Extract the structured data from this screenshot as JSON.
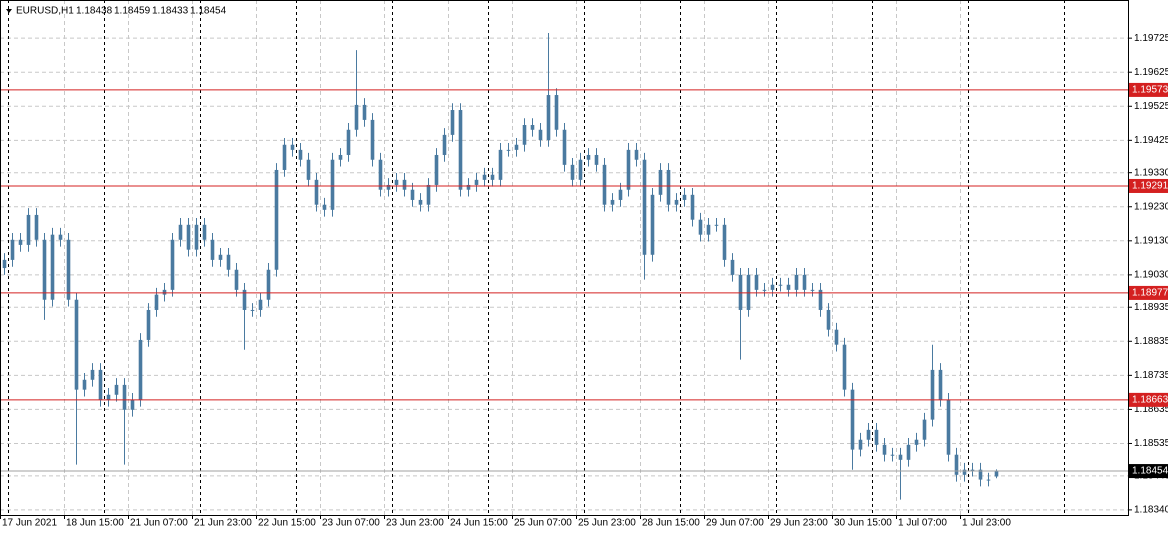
{
  "chart_data": {
    "type": "candlestick",
    "title": "EURUSD,H1",
    "color": "#4a7aa0",
    "level_color": "#d42020",
    "grid": true,
    "xlim": [
      0,
      141
    ],
    "ylim": [
      1.18325,
      1.19837
    ],
    "yticks": [
      1.19725,
      1.19625,
      1.19525,
      1.19425,
      {
        "value": 1.1933,
        "label": "1.19330"
      },
      {
        "value": 1.1923,
        "label": "1.19230"
      },
      {
        "value": 1.1913,
        "label": "1.19130"
      },
      {
        "value": 1.1903,
        "label": "1.19030"
      },
      1.18935,
      1.18835,
      1.18735,
      1.18635,
      1.18535,
      {
        "value": 1.1844,
        "label": "1.18440"
      },
      {
        "value": 1.1834,
        "label": "1.18340"
      }
    ],
    "xticks": [
      {
        "value": 0,
        "label": "17 Jun 2021"
      },
      {
        "value": 8,
        "label": "18 Jun 15:00"
      },
      {
        "value": 16,
        "label": "21 Jun 07:00"
      },
      {
        "value": 24,
        "label": "21 Jun 23:00"
      },
      {
        "value": 32,
        "label": "22 Jun 15:00"
      },
      {
        "value": 40,
        "label": "23 Jun 07:00"
      },
      {
        "value": 48,
        "label": "23 Jun 23:00"
      },
      {
        "value": 56,
        "label": "24 Jun 15:00"
      },
      {
        "value": 64,
        "label": "25 Jun 07:00"
      },
      {
        "value": 72,
        "label": "25 Jun 23:00"
      },
      {
        "value": 80,
        "label": "28 Jun 15:00"
      },
      {
        "value": 88,
        "label": "29 Jun 07:00"
      },
      {
        "value": 96,
        "label": "29 Jun 23:00"
      },
      {
        "value": 104,
        "label": "30 Jun 15:00"
      },
      {
        "value": 112,
        "label": "1 Jul 07:00"
      },
      {
        "value": 120,
        "label": "1 Jul 23:00"
      }
    ],
    "separators": [
      1,
      13,
      25,
      37,
      49,
      61,
      73,
      85,
      97,
      109,
      121,
      133
    ],
    "levels": [
      1.19573,
      1.19291,
      1.18977,
      1.18663
    ],
    "ohlc": [
      [
        1.1905,
        1.19094,
        1.1903,
        1.19074
      ],
      [
        1.19074,
        1.19153,
        1.19054,
        1.19133
      ],
      [
        1.19133,
        1.19153,
        1.19098,
        1.19118
      ],
      [
        1.19118,
        1.19226,
        1.19098,
        1.19206
      ],
      [
        1.19206,
        1.19226,
        1.19113,
        1.19133
      ],
      [
        1.19133,
        1.19153,
        1.18898,
        1.18957
      ],
      [
        1.18957,
        1.19168,
        1.18937,
        1.19148
      ],
      [
        1.19148,
        1.19168,
        1.19113,
        1.19133
      ],
      [
        1.19133,
        1.19153,
        1.18937,
        1.18957
      ],
      [
        1.18957,
        1.18977,
        1.18473,
        1.18693
      ],
      [
        1.18693,
        1.18742,
        1.18673,
        1.18722
      ],
      [
        1.18722,
        1.18771,
        1.18702,
        1.18751
      ],
      [
        1.18751,
        1.18771,
        1.18643,
        1.18663
      ],
      [
        1.18663,
        1.18698,
        1.18643,
        1.18678
      ],
      [
        1.18678,
        1.18727,
        1.18658,
        1.18707
      ],
      [
        1.18707,
        1.18727,
        1.18473,
        1.18634
      ],
      [
        1.18634,
        1.18683,
        1.18614,
        1.18663
      ],
      [
        1.18663,
        1.18859,
        1.18643,
        1.18839
      ],
      [
        1.18839,
        1.18947,
        1.18819,
        1.18927
      ],
      [
        1.18927,
        1.18992,
        1.18907,
        1.18972
      ],
      [
        1.18972,
        1.19006,
        1.18952,
        1.18986
      ],
      [
        1.18986,
        1.19153,
        1.18966,
        1.19133
      ],
      [
        1.19133,
        1.19197,
        1.19113,
        1.19177
      ],
      [
        1.19177,
        1.19197,
        1.19084,
        1.19104
      ],
      [
        1.19104,
        1.19197,
        1.19084,
        1.19177
      ],
      [
        1.19177,
        1.19197,
        1.19113,
        1.19133
      ],
      [
        1.19133,
        1.19153,
        1.19054,
        1.19074
      ],
      [
        1.19074,
        1.19109,
        1.19054,
        1.19089
      ],
      [
        1.19089,
        1.19109,
        1.19025,
        1.19045
      ],
      [
        1.19045,
        1.19065,
        1.18966,
        1.18986
      ],
      [
        1.18986,
        1.19006,
        1.1881,
        1.18927
      ],
      [
        1.18927,
        1.18947,
        1.18907,
        1.18927
      ],
      [
        1.18927,
        1.18977,
        1.18907,
        1.18957
      ],
      [
        1.18957,
        1.19065,
        1.18937,
        1.19045
      ],
      [
        1.19045,
        1.19358,
        1.19025,
        1.19338
      ],
      [
        1.19338,
        1.19432,
        1.19318,
        1.19412
      ],
      [
        1.19412,
        1.19432,
        1.19377,
        1.19397
      ],
      [
        1.19397,
        1.19417,
        1.19348,
        1.19368
      ],
      [
        1.19368,
        1.19388,
        1.19289,
        1.19309
      ],
      [
        1.19309,
        1.19329,
        1.19216,
        1.19236
      ],
      [
        1.19236,
        1.19256,
        1.19201,
        1.19221
      ],
      [
        1.19221,
        1.19388,
        1.19201,
        1.19368
      ],
      [
        1.19368,
        1.19402,
        1.19348,
        1.19382
      ],
      [
        1.19382,
        1.19476,
        1.19362,
        1.19456
      ],
      [
        1.19456,
        1.1969,
        1.19436,
        1.19529
      ],
      [
        1.19529,
        1.19549,
        1.19465,
        1.19485
      ],
      [
        1.19485,
        1.19505,
        1.19348,
        1.19368
      ],
      [
        1.19368,
        1.19388,
        1.1926,
        1.1928
      ],
      [
        1.1928,
        1.19314,
        1.1926,
        1.19294
      ],
      [
        1.19294,
        1.19329,
        1.19274,
        1.19309
      ],
      [
        1.19309,
        1.19329,
        1.1926,
        1.1928
      ],
      [
        1.1928,
        1.193,
        1.1923,
        1.1925
      ],
      [
        1.1925,
        1.1927,
        1.19216,
        1.19236
      ],
      [
        1.19236,
        1.19314,
        1.19216,
        1.19294
      ],
      [
        1.19294,
        1.19402,
        1.19274,
        1.19382
      ],
      [
        1.19382,
        1.19461,
        1.19362,
        1.19441
      ],
      [
        1.19441,
        1.19534,
        1.19421,
        1.19514
      ],
      [
        1.19514,
        1.19534,
        1.1926,
        1.1928
      ],
      [
        1.1928,
        1.19314,
        1.1926,
        1.19294
      ],
      [
        1.19294,
        1.19329,
        1.19274,
        1.19309
      ],
      [
        1.19309,
        1.19344,
        1.19289,
        1.19324
      ],
      [
        1.19324,
        1.19344,
        1.19289,
        1.19309
      ],
      [
        1.19309,
        1.19417,
        1.19289,
        1.19397
      ],
      [
        1.19397,
        1.19417,
        1.19377,
        1.19397
      ],
      [
        1.19397,
        1.19432,
        1.19377,
        1.19412
      ],
      [
        1.19412,
        1.1949,
        1.19392,
        1.1947
      ],
      [
        1.1947,
        1.1949,
        1.19436,
        1.19456
      ],
      [
        1.19456,
        1.19476,
        1.19406,
        1.19426
      ],
      [
        1.19426,
        1.1974,
        1.19406,
        1.19558
      ],
      [
        1.19558,
        1.19578,
        1.19436,
        1.19456
      ],
      [
        1.19456,
        1.19476,
        1.19333,
        1.19353
      ],
      [
        1.19353,
        1.19373,
        1.19289,
        1.19309
      ],
      [
        1.19309,
        1.19388,
        1.19289,
        1.19368
      ],
      [
        1.19368,
        1.19402,
        1.19348,
        1.19382
      ],
      [
        1.19382,
        1.19402,
        1.19333,
        1.19353
      ],
      [
        1.19353,
        1.19373,
        1.19216,
        1.19236
      ],
      [
        1.19236,
        1.1927,
        1.19216,
        1.1925
      ],
      [
        1.1925,
        1.193,
        1.1923,
        1.1928
      ],
      [
        1.1928,
        1.19417,
        1.1926,
        1.19397
      ],
      [
        1.19397,
        1.19417,
        1.19348,
        1.19368
      ],
      [
        1.19368,
        1.19388,
        1.19016,
        1.19089
      ],
      [
        1.19089,
        1.19285,
        1.19069,
        1.19265
      ],
      [
        1.19265,
        1.19358,
        1.19245,
        1.19338
      ],
      [
        1.19338,
        1.19358,
        1.19216,
        1.19236
      ],
      [
        1.19236,
        1.1927,
        1.19216,
        1.1925
      ],
      [
        1.1925,
        1.19285,
        1.1923,
        1.19265
      ],
      [
        1.19265,
        1.19285,
        1.19172,
        1.19192
      ],
      [
        1.19192,
        1.19212,
        1.19128,
        1.19148
      ],
      [
        1.19148,
        1.19197,
        1.19128,
        1.19177
      ],
      [
        1.19177,
        1.19197,
        1.19157,
        1.19177
      ],
      [
        1.19177,
        1.19197,
        1.19054,
        1.19074
      ],
      [
        1.19074,
        1.19094,
        1.1901,
        1.1903
      ],
      [
        1.1903,
        1.1905,
        1.18781,
        1.18927
      ],
      [
        1.18927,
        1.1905,
        1.18907,
        1.1903
      ],
      [
        1.1903,
        1.1905,
        1.18966,
        1.18986
      ],
      [
        1.18986,
        1.19006,
        1.18966,
        1.18986
      ],
      [
        1.18986,
        1.19021,
        1.18966,
        1.19001
      ],
      [
        1.19001,
        1.19021,
        1.18981,
        1.19001
      ],
      [
        1.19001,
        1.19021,
        1.18966,
        1.18986
      ],
      [
        1.18986,
        1.1905,
        1.18966,
        1.1903
      ],
      [
        1.1903,
        1.1905,
        1.18966,
        1.18986
      ],
      [
        1.18986,
        1.19006,
        1.18966,
        1.18986
      ],
      [
        1.18986,
        1.19006,
        1.18907,
        1.18927
      ],
      [
        1.18927,
        1.18947,
        1.18849,
        1.18869
      ],
      [
        1.18869,
        1.18889,
        1.18805,
        1.18825
      ],
      [
        1.18825,
        1.18845,
        1.18673,
        1.18693
      ],
      [
        1.18693,
        1.18713,
        1.18458,
        1.18517
      ],
      [
        1.18517,
        1.18566,
        1.18497,
        1.18546
      ],
      [
        1.18546,
        1.18595,
        1.18526,
        1.18575
      ],
      [
        1.18575,
        1.18595,
        1.18511,
        1.18531
      ],
      [
        1.18531,
        1.18551,
        1.18482,
        1.18502
      ],
      [
        1.18502,
        1.18522,
        1.18482,
        1.18502
      ],
      [
        1.18502,
        1.18522,
        1.1837,
        1.18487
      ],
      [
        1.18487,
        1.18551,
        1.18467,
        1.18531
      ],
      [
        1.18531,
        1.18566,
        1.18511,
        1.18546
      ],
      [
        1.18546,
        1.18625,
        1.18526,
        1.18605
      ],
      [
        1.18605,
        1.18825,
        1.18585,
        1.18751
      ],
      [
        1.18751,
        1.18771,
        1.18643,
        1.18663
      ],
      [
        1.18663,
        1.18683,
        1.18482,
        1.18502
      ],
      [
        1.18502,
        1.18522,
        1.18423,
        1.18443
      ],
      [
        1.18443,
        1.18478,
        1.18423,
        1.18458
      ],
      [
        1.18458,
        1.18478,
        1.18438,
        1.18458
      ],
      [
        1.18458,
        1.18478,
        1.18409,
        1.18429
      ],
      [
        1.18429,
        1.18449,
        1.18409,
        1.18429
      ],
      [
        1.18438,
        1.18459,
        1.18433,
        1.18454
      ]
    ]
  }
}
